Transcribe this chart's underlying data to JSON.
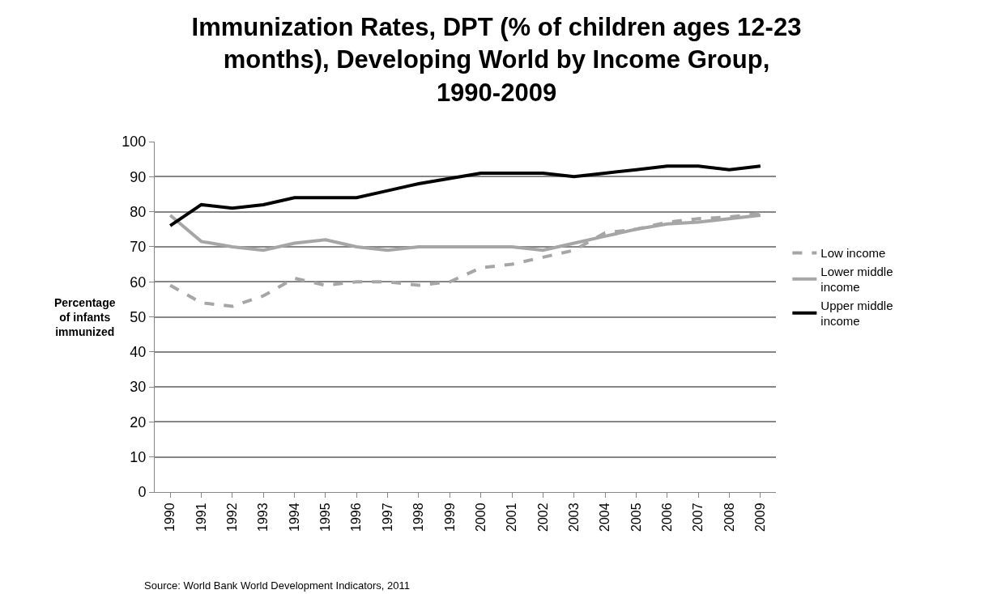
{
  "chart_data": {
    "type": "line",
    "title": "Immunization Rates, DPT (% of children ages 12-23 months), Developing World by Income Group, 1990-2009",
    "ylabel": "Percentage of infants immunized",
    "categories": [
      "1990",
      "1991",
      "1992",
      "1993",
      "1994",
      "1995",
      "1996",
      "1997",
      "1998",
      "1999",
      "2000",
      "2001",
      "2002",
      "2003",
      "2004",
      "2005",
      "2006",
      "2007",
      "2008",
      "2009"
    ],
    "series": [
      {
        "name": "Low income",
        "color": "#a6a6a6",
        "line_style": "dashed",
        "values": [
          59,
          54,
          53,
          56,
          61,
          59,
          60,
          60,
          59,
          60,
          64,
          65,
          67,
          69,
          74,
          75,
          77,
          78,
          78.5,
          79.5
        ]
      },
      {
        "name": "Lower middle income",
        "color": "#a6a6a6",
        "line_style": "solid",
        "values": [
          79,
          71.5,
          70,
          69,
          71,
          72,
          70,
          69,
          70,
          70,
          70,
          70,
          69,
          71,
          73,
          75,
          76.5,
          77,
          78,
          79
        ]
      },
      {
        "name": "Upper middle income",
        "color": "#000000",
        "line_style": "solid",
        "values": [
          76,
          82,
          81,
          82,
          84,
          84,
          84,
          86,
          88,
          89.5,
          91,
          91,
          91,
          90,
          91,
          92,
          93,
          93,
          92,
          93
        ]
      }
    ],
    "ylim": [
      0,
      100
    ],
    "yticks": [
      0,
      10,
      20,
      30,
      40,
      50,
      60,
      70,
      80,
      90,
      100
    ],
    "grid": "y",
    "legend": "right",
    "marker": "none",
    "annotations": [
      "Source: World Bank World Development Indicators, 2011"
    ]
  }
}
